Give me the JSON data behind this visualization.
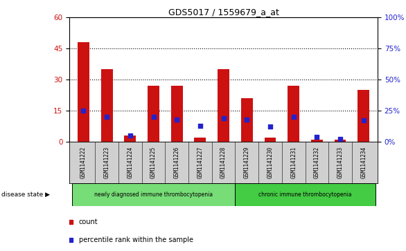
{
  "title": "GDS5017 / 1559679_a_at",
  "samples": [
    "GSM1141222",
    "GSM1141223",
    "GSM1141224",
    "GSM1141225",
    "GSM1141226",
    "GSM1141227",
    "GSM1141228",
    "GSM1141229",
    "GSM1141230",
    "GSM1141231",
    "GSM1141232",
    "GSM1141233",
    "GSM1141234"
  ],
  "count_values": [
    48,
    35,
    3,
    27,
    27,
    2,
    35,
    21,
    2,
    27,
    1,
    1,
    25
  ],
  "percentile_values": [
    25,
    20,
    5,
    20,
    18,
    13,
    19,
    18,
    12,
    20,
    4,
    2,
    17
  ],
  "ylim_left": [
    0,
    60
  ],
  "ylim_right": [
    0,
    100
  ],
  "yticks_left": [
    0,
    15,
    30,
    45,
    60
  ],
  "yticks_right": [
    0,
    25,
    50,
    75,
    100
  ],
  "count_color": "#cc1111",
  "percentile_color": "#2222cc",
  "bg_plot": "#ffffff",
  "bg_labels": "#d0d0d0",
  "disease_group_colors": [
    "#77dd77",
    "#44cc44"
  ],
  "disease_groups": [
    {
      "label": "newly diagnosed immune thrombocytopenia",
      "start": 0,
      "end": 7
    },
    {
      "label": "chronic immune thrombocytopenia",
      "start": 7,
      "end": 13
    }
  ],
  "disease_state_label": "disease state",
  "legend_count": "count",
  "legend_percentile": "percentile rank within the sample",
  "bar_width": 0.5
}
